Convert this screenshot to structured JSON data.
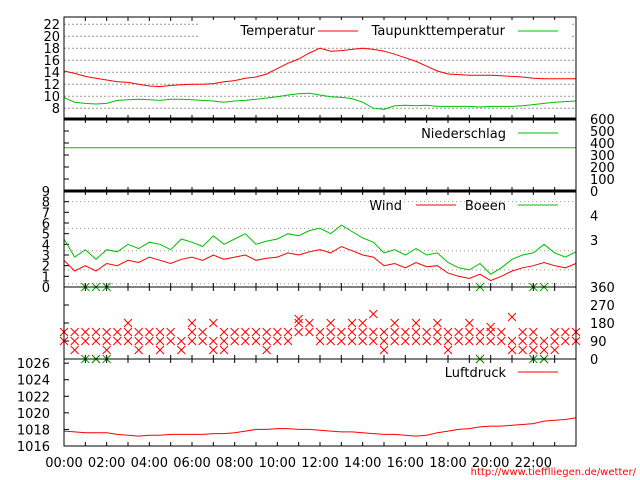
{
  "chart_data": [
    {
      "type": "line",
      "panel": "temperature",
      "x_time": [
        "00:00",
        "00:30",
        "01:00",
        "01:30",
        "02:00",
        "02:30",
        "03:00",
        "03:30",
        "04:00",
        "04:30",
        "05:00",
        "05:30",
        "06:00",
        "06:30",
        "07:00",
        "07:30",
        "08:00",
        "08:30",
        "09:00",
        "09:30",
        "10:00",
        "10:30",
        "11:00",
        "11:30",
        "12:00",
        "12:30",
        "13:00",
        "13:30",
        "14:00",
        "14:30",
        "15:00",
        "15:30",
        "16:00",
        "16:30",
        "17:00",
        "17:30",
        "18:00",
        "18:30",
        "19:00",
        "19:30",
        "20:00",
        "20:30",
        "21:00",
        "21:30",
        "22:00",
        "22:30",
        "23:00",
        "23:30",
        "24:00"
      ],
      "ylim": [
        6.2,
        23.2
      ],
      "yticks": [
        "8",
        "10",
        "12",
        "14",
        "16",
        "18",
        "20",
        "22"
      ],
      "grid": true,
      "legend_position": "top-right",
      "series": [
        {
          "name": "Temperatur",
          "color": "#ff0000",
          "values": [
            14.2,
            13.8,
            13.3,
            13.0,
            12.7,
            12.4,
            12.3,
            12.0,
            11.7,
            11.6,
            11.8,
            11.9,
            12.0,
            12.0,
            12.1,
            12.4,
            12.6,
            13.0,
            13.2,
            13.7,
            14.6,
            15.5,
            16.2,
            17.2,
            18.0,
            17.5,
            17.6,
            17.8,
            18.0,
            17.8,
            17.5,
            17.0,
            16.4,
            15.8,
            15.0,
            14.2,
            13.7,
            13.6,
            13.5,
            13.5,
            13.5,
            13.4,
            13.3,
            13.2,
            13.0,
            12.9,
            12.9,
            12.9,
            12.9
          ]
        },
        {
          "name": "Taupunkttemperatur",
          "color": "#00c000",
          "values": [
            9.8,
            9.0,
            8.8,
            8.7,
            8.8,
            9.3,
            9.4,
            9.5,
            9.4,
            9.3,
            9.5,
            9.5,
            9.4,
            9.3,
            9.2,
            9.0,
            9.2,
            9.3,
            9.5,
            9.7,
            9.9,
            10.2,
            10.4,
            10.5,
            10.2,
            9.9,
            9.8,
            9.6,
            9.0,
            8.0,
            7.8,
            8.4,
            8.5,
            8.4,
            8.5,
            8.3,
            8.3,
            8.3,
            8.3,
            8.2,
            8.3,
            8.3,
            8.3,
            8.4,
            8.6,
            8.8,
            9.0,
            9.1,
            9.2
          ]
        }
      ]
    },
    {
      "type": "line",
      "panel": "precipitation",
      "ylim": [
        0,
        600
      ],
      "yticks_right": [
        "0",
        "100",
        "200",
        "300",
        "400",
        "500",
        "600"
      ],
      "legend_position": "top-right",
      "series": [
        {
          "name": "Niederschlag",
          "color": "#00c000",
          "constant_value": 360
        }
      ]
    },
    {
      "type": "line",
      "panel": "wind",
      "ylim": [
        0,
        9
      ],
      "yticks": [
        "0",
        "1",
        "2",
        "3",
        "4",
        "5",
        "6",
        "7",
        "8",
        "9"
      ],
      "grid_levels": [
        0.3,
        1.6,
        3.4,
        5.5,
        8.0
      ],
      "right_labels": [
        {
          "text": "3",
          "at": 4.4
        },
        {
          "text": "4",
          "at": 6.7
        }
      ],
      "legend_position": "top-right",
      "series": [
        {
          "name": "Wind",
          "color": "#ff0000",
          "values": [
            2.5,
            1.5,
            2.0,
            1.5,
            2.2,
            2.0,
            2.5,
            2.3,
            2.8,
            2.5,
            2.2,
            2.6,
            2.8,
            2.5,
            3.0,
            2.6,
            2.8,
            3.0,
            2.5,
            2.7,
            2.8,
            3.2,
            3.0,
            3.3,
            3.5,
            3.2,
            3.8,
            3.4,
            3.0,
            2.8,
            2.0,
            2.2,
            1.8,
            2.3,
            1.9,
            2.0,
            1.3,
            1.0,
            0.8,
            1.2,
            0.6,
            1.0,
            1.5,
            1.8,
            2.0,
            2.3,
            2.0,
            1.8,
            2.2
          ]
        },
        {
          "name": "Boeen",
          "color": "#00c000",
          "values": [
            4.5,
            2.8,
            3.5,
            2.6,
            3.5,
            3.3,
            4.0,
            3.6,
            4.2,
            4.0,
            3.5,
            4.5,
            4.2,
            3.8,
            4.8,
            4.0,
            4.5,
            5.0,
            4.0,
            4.3,
            4.5,
            5.0,
            4.8,
            5.3,
            5.5,
            5.0,
            5.8,
            5.2,
            4.6,
            4.2,
            3.2,
            3.5,
            3.0,
            3.6,
            3.0,
            3.2,
            2.3,
            1.8,
            1.6,
            2.2,
            1.2,
            1.8,
            2.6,
            3.0,
            3.2,
            4.0,
            3.2,
            2.8,
            3.3
          ]
        }
      ]
    },
    {
      "type": "scatter",
      "panel": "wind-direction",
      "ylim": [
        0,
        360
      ],
      "yticks_right": [
        "0",
        "90",
        "180",
        "270",
        "360"
      ],
      "series": [
        {
          "color": "#ff0000",
          "values_per_time": [
            [
              90,
              135
            ],
            [
              45,
              90,
              135
            ],
            [
              90,
              135
            ],
            [
              0,
              90,
              135
            ],
            [
              45,
              90,
              135
            ],
            [
              90,
              135
            ],
            [
              90,
              135,
              180
            ],
            [
              45,
              90,
              135
            ],
            [
              90,
              135
            ],
            [
              45,
              90,
              135
            ],
            [
              90,
              135
            ],
            [
              45,
              90
            ],
            [
              90,
              135,
              180
            ],
            [
              90,
              135
            ],
            [
              45,
              90,
              180
            ],
            [
              45,
              90,
              135
            ],
            [
              90,
              135
            ],
            [
              90,
              135
            ],
            [
              90,
              135
            ],
            [
              45,
              90,
              135
            ],
            [
              90,
              135
            ],
            [
              90,
              135
            ],
            [
              135,
              180,
              200
            ],
            [
              135,
              180
            ],
            [
              90,
              135
            ],
            [
              90,
              135,
              180
            ],
            [
              90,
              135
            ],
            [
              90,
              135,
              180
            ],
            [
              90,
              135,
              180
            ],
            [
              90,
              135,
              225
            ],
            [
              45,
              90,
              135
            ],
            [
              90,
              135,
              180
            ],
            [
              90,
              135
            ],
            [
              90,
              135,
              180
            ],
            [
              90,
              135
            ],
            [
              90,
              135,
              180
            ],
            [
              45,
              90,
              135
            ],
            [
              90,
              135
            ],
            [
              90,
              135,
              180
            ],
            [
              0,
              90,
              135
            ],
            [
              90,
              135,
              160
            ],
            [
              90,
              135
            ],
            [
              45,
              90,
              210
            ],
            [
              45,
              90,
              135
            ],
            [
              45,
              90,
              135
            ],
            [
              0,
              45,
              90
            ],
            [
              45,
              90,
              135
            ],
            [
              90,
              135
            ],
            [
              90,
              135
            ]
          ]
        },
        {
          "color": "#00a000",
          "points": [
            [
              "01:00",
              360
            ],
            [
              "01:30",
              360
            ],
            [
              "02:00",
              360
            ],
            [
              "01:00",
              0
            ],
            [
              "01:30",
              0
            ],
            [
              "02:00",
              0
            ],
            [
              "19:30",
              360
            ],
            [
              "19:30",
              0
            ],
            [
              "22:00",
              360
            ],
            [
              "22:30",
              360
            ],
            [
              "22:00",
              0
            ],
            [
              "22:30",
              0
            ]
          ]
        }
      ]
    },
    {
      "type": "line",
      "panel": "pressure",
      "ylim": [
        1016,
        1026.5
      ],
      "yticks": [
        "1016",
        "1018",
        "1020",
        "1022",
        "1024",
        "1026"
      ],
      "legend_position": "top-right",
      "xticks": [
        "00:00",
        "02:00",
        "04:00",
        "06:00",
        "08:00",
        "10:00",
        "12:00",
        "14:00",
        "16:00",
        "18:00",
        "20:00",
        "22:00"
      ],
      "series": [
        {
          "name": "Luftdruck",
          "color": "#ff0000",
          "values": [
            1017.8,
            1017.7,
            1017.6,
            1017.6,
            1017.6,
            1017.4,
            1017.3,
            1017.2,
            1017.3,
            1017.3,
            1017.4,
            1017.4,
            1017.4,
            1017.4,
            1017.5,
            1017.5,
            1017.6,
            1017.8,
            1018.0,
            1018.0,
            1018.1,
            1018.1,
            1018.0,
            1018.0,
            1017.9,
            1017.8,
            1017.7,
            1017.7,
            1017.6,
            1017.5,
            1017.4,
            1017.4,
            1017.3,
            1017.2,
            1017.3,
            1017.6,
            1017.8,
            1018.0,
            1018.1,
            1018.3,
            1018.4,
            1018.4,
            1018.5,
            1018.6,
            1018.7,
            1019.0,
            1019.1,
            1019.2,
            1019.4
          ]
        }
      ]
    }
  ],
  "footer": {
    "url": "http://www.tiefflliegen.de/wetter/"
  }
}
